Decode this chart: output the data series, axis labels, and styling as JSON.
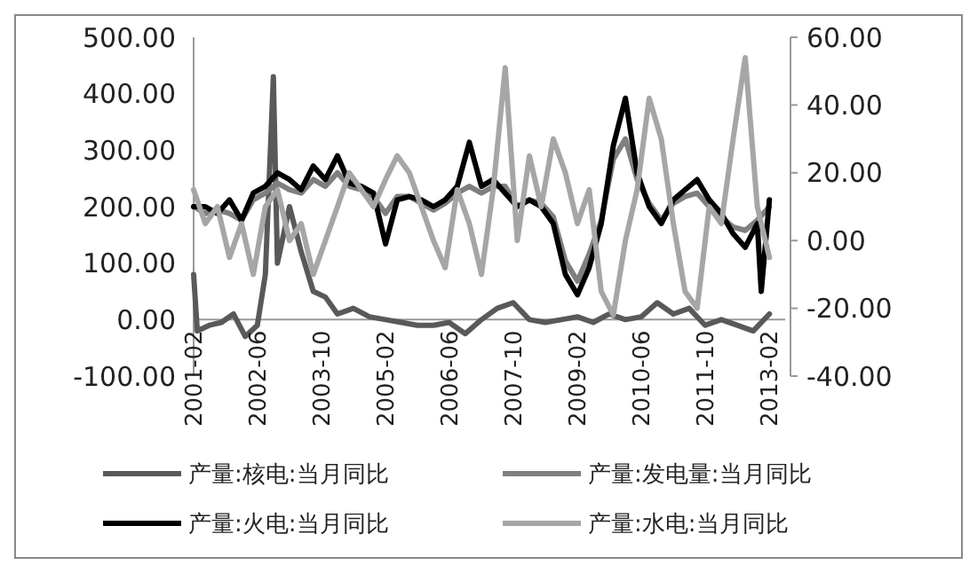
{
  "chart_data": {
    "type": "line",
    "legend": "bottom",
    "marker": "none",
    "line_style": "solid",
    "grid": false,
    "xlim": [
      "2001-02",
      "2013-06"
    ],
    "xticks": [
      "2001-02",
      "2002-06",
      "2003-10",
      "2005-02",
      "2006-06",
      "2007-10",
      "2009-02",
      "2010-06",
      "2011-10",
      "2013-02"
    ],
    "ylim": [
      -100,
      500
    ],
    "yticks": [
      {
        "value": -100,
        "label": "-100.00"
      },
      {
        "value": 0,
        "label": "0.00"
      },
      {
        "value": 100,
        "label": "100.00"
      },
      {
        "value": 200,
        "label": "200.00"
      },
      {
        "value": 300,
        "label": "300.00"
      },
      {
        "value": 400,
        "label": "400.00"
      },
      {
        "value": 500,
        "label": "500.00"
      }
    ],
    "y2lim": [
      -40,
      60
    ],
    "y2ticks": [
      {
        "value": -40,
        "label": "-40.00"
      },
      {
        "value": -20,
        "label": "-20.00"
      },
      {
        "value": 0,
        "label": "0.00"
      },
      {
        "value": 20,
        "label": "20.00"
      },
      {
        "value": 40,
        "label": "40.00"
      },
      {
        "value": 60,
        "label": "60.00"
      }
    ],
    "series": [
      {
        "name": "产量:核电:当月同比",
        "color": "#595959",
        "x": [
          "2001-02",
          "2001-03",
          "2001-06",
          "2001-09",
          "2001-12",
          "2002-03",
          "2002-06",
          "2002-08",
          "2002-10",
          "2002-11",
          "2003-02",
          "2003-05",
          "2003-08",
          "2003-11",
          "2004-02",
          "2004-06",
          "2004-10",
          "2005-02",
          "2005-06",
          "2005-10",
          "2006-02",
          "2006-06",
          "2006-10",
          "2007-02",
          "2007-06",
          "2007-10",
          "2008-02",
          "2008-06",
          "2008-10",
          "2009-02",
          "2009-06",
          "2009-10",
          "2010-02",
          "2010-06",
          "2010-10",
          "2011-02",
          "2011-06",
          "2011-10",
          "2012-02",
          "2012-06",
          "2012-10",
          "2013-02"
        ],
        "values": [
          80,
          -20,
          -10,
          -5,
          10,
          -30,
          -10,
          80,
          430,
          100,
          200,
          120,
          50,
          40,
          10,
          20,
          5,
          0,
          -5,
          -10,
          -10,
          -5,
          -25,
          0,
          20,
          30,
          0,
          -5,
          0,
          5,
          -5,
          10,
          0,
          5,
          30,
          10,
          20,
          -10,
          0,
          -10,
          -20,
          10
        ]
      },
      {
        "name": "产量:发电量:当月同比",
        "color": "#7f7f7f",
        "axis": "y2",
        "x": [
          "2001-02",
          "2001-05",
          "2001-08",
          "2001-11",
          "2002-02",
          "2002-05",
          "2002-08",
          "2002-11",
          "2003-02",
          "2003-05",
          "2003-08",
          "2003-11",
          "2004-02",
          "2004-05",
          "2004-08",
          "2004-11",
          "2005-02",
          "2005-05",
          "2005-08",
          "2005-11",
          "2006-02",
          "2006-05",
          "2006-08",
          "2006-11",
          "2007-02",
          "2007-05",
          "2007-08",
          "2007-11",
          "2008-02",
          "2008-05",
          "2008-08",
          "2008-11",
          "2009-02",
          "2009-05",
          "2009-08",
          "2009-11",
          "2010-02",
          "2010-05",
          "2010-08",
          "2010-11",
          "2011-02",
          "2011-05",
          "2011-08",
          "2011-11",
          "2012-02",
          "2012-05",
          "2012-08",
          "2012-11",
          "2013-02"
        ],
        "values": [
          10,
          8,
          9,
          8,
          6,
          12,
          14,
          17,
          15,
          14,
          18,
          16,
          20,
          16,
          15,
          13,
          8,
          13,
          13,
          11,
          9,
          11,
          14,
          16,
          14,
          16,
          16,
          10,
          12,
          11,
          7,
          -6,
          -12,
          -4,
          6,
          24,
          30,
          18,
          11,
          6,
          11,
          13,
          14,
          10,
          7,
          4,
          3,
          6,
          10
        ]
      },
      {
        "name": "产量:火电:当月同比",
        "color": "#000000",
        "axis": "y2",
        "x": [
          "2001-02",
          "2001-05",
          "2001-08",
          "2001-11",
          "2002-02",
          "2002-05",
          "2002-08",
          "2002-11",
          "2003-02",
          "2003-05",
          "2003-08",
          "2003-11",
          "2004-02",
          "2004-05",
          "2004-08",
          "2004-11",
          "2005-02",
          "2005-05",
          "2005-08",
          "2005-11",
          "2006-02",
          "2006-05",
          "2006-08",
          "2006-11",
          "2007-02",
          "2007-05",
          "2007-08",
          "2007-11",
          "2008-02",
          "2008-05",
          "2008-08",
          "2008-11",
          "2009-02",
          "2009-05",
          "2009-08",
          "2009-11",
          "2010-02",
          "2010-05",
          "2010-08",
          "2010-11",
          "2011-02",
          "2011-05",
          "2011-08",
          "2011-11",
          "2012-02",
          "2012-05",
          "2012-08",
          "2012-11",
          "2012-12",
          "2013-02"
        ],
        "values": [
          10,
          10,
          8,
          12,
          6,
          14,
          16,
          20,
          18,
          15,
          22,
          18,
          25,
          17,
          16,
          14,
          -1,
          12,
          13,
          12,
          10,
          12,
          16,
          29,
          16,
          18,
          14,
          10,
          12,
          10,
          5,
          -10,
          -16,
          -8,
          5,
          28,
          42,
          20,
          10,
          5,
          12,
          15,
          18,
          12,
          8,
          2,
          -2,
          5,
          -15,
          12
        ]
      },
      {
        "name": "产量:水电:当月同比",
        "color": "#a6a6a6",
        "axis": "y2",
        "x": [
          "2001-02",
          "2001-05",
          "2001-08",
          "2001-11",
          "2002-02",
          "2002-05",
          "2002-08",
          "2002-11",
          "2003-02",
          "2003-05",
          "2003-08",
          "2003-11",
          "2004-02",
          "2004-05",
          "2004-08",
          "2004-11",
          "2005-02",
          "2005-05",
          "2005-08",
          "2005-11",
          "2006-02",
          "2006-05",
          "2006-08",
          "2006-11",
          "2007-02",
          "2007-05",
          "2007-08",
          "2007-11",
          "2008-02",
          "2008-05",
          "2008-08",
          "2008-11",
          "2009-02",
          "2009-05",
          "2009-08",
          "2009-11",
          "2010-02",
          "2010-05",
          "2010-08",
          "2010-11",
          "2011-02",
          "2011-05",
          "2011-08",
          "2011-11",
          "2012-02",
          "2012-05",
          "2012-08",
          "2012-11",
          "2013-02"
        ],
        "values": [
          15,
          5,
          10,
          -5,
          5,
          -10,
          10,
          15,
          0,
          5,
          -10,
          0,
          10,
          20,
          15,
          10,
          18,
          25,
          20,
          10,
          0,
          -8,
          15,
          5,
          -10,
          15,
          51,
          0,
          25,
          10,
          30,
          20,
          5,
          15,
          -15,
          -22,
          0,
          15,
          42,
          30,
          5,
          -15,
          -20,
          10,
          5,
          30,
          54,
          10,
          -5
        ]
      }
    ]
  }
}
